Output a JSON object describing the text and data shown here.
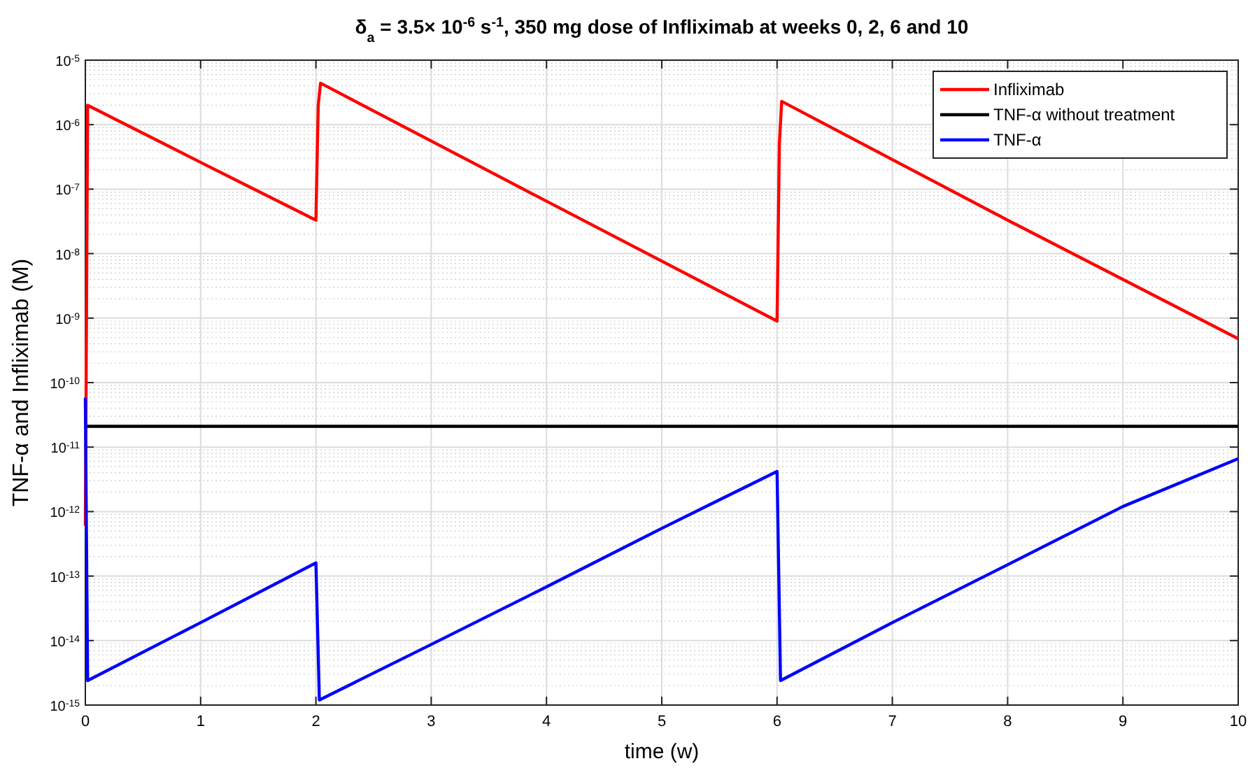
{
  "chart_data": {
    "type": "line",
    "title": "δ$_{a}$ = 3.5× 10$^{-6}$ s$^{-1}$, 350 mg dose of Infliximab at weeks 0, 2, 6 and 10",
    "xlabel": "time (w)",
    "ylabel": "TNF-α and Infliximab (M)",
    "log": "y",
    "grid": true,
    "legend": "top right",
    "line_style": "solid",
    "xlim": [
      0,
      10
    ],
    "ylim": [
      1e-15,
      1e-05
    ],
    "xticks": [
      0,
      1,
      2,
      3,
      4,
      5,
      6,
      7,
      8,
      9,
      10
    ],
    "yticks": [
      {
        "value": 1e-15,
        "label": "10$^{-15}$"
      },
      {
        "value": 1e-14,
        "label": "10$^{-14}$"
      },
      {
        "value": 1e-13,
        "label": "10$^{-13}$"
      },
      {
        "value": 1e-12,
        "label": "10$^{-12}$"
      },
      {
        "value": 1e-11,
        "label": "10$^{-11}$"
      },
      {
        "value": 1e-10,
        "label": "10$^{-10}$"
      },
      {
        "value": 1e-09,
        "label": "10$^{-9}$"
      },
      {
        "value": 1e-08,
        "label": "10$^{-8}$"
      },
      {
        "value": 1e-07,
        "label": "10$^{-7}$"
      },
      {
        "value": 1e-06,
        "label": "10$^{-6}$"
      },
      {
        "value": 1e-05,
        "label": "10$^{-5}$"
      }
    ],
    "series": [
      {
        "name": "Infliximab",
        "color": "#ff0000",
        "x": [
          0,
          0.02,
          1,
          2,
          2.02,
          2.04,
          4,
          6,
          6.02,
          6.04,
          8,
          10
        ],
        "values": [
          6e-13,
          2e-06,
          2.6e-07,
          3.3e-08,
          2e-06,
          4.4e-06,
          6.5e-08,
          9e-10,
          5e-07,
          2.3e-06,
          3.3e-08,
          4.8e-10
        ]
      },
      {
        "name": "TNF-α without treatment",
        "color": "#000000",
        "x": [
          0,
          10
        ],
        "values": [
          2.1e-11,
          2.1e-11
        ]
      },
      {
        "name": "TNF-α",
        "color": "#0000ff",
        "x": [
          0,
          0.02,
          1,
          2,
          2.03,
          3,
          4,
          5,
          6,
          6.03,
          7,
          8,
          9,
          10
        ],
        "values": [
          5.8e-11,
          2.4e-15,
          1.9e-14,
          1.6e-13,
          1.2e-15,
          8.7e-15,
          6.8e-14,
          5.5e-13,
          4.2e-12,
          2.4e-15,
          1.9e-14,
          1.5e-13,
          1.2e-12,
          6.6e-12
        ]
      }
    ]
  }
}
